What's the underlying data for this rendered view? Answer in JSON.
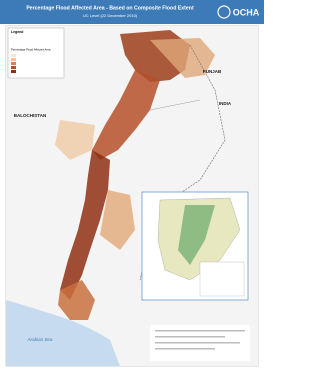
{
  "header": {
    "title": "Percentage Flood Affected Area - Based on Composite Flood Extent",
    "subtitle": "UC Level (22 December 2010)",
    "logo": "OCHA"
  },
  "legend": {
    "title": "Legend",
    "heading": "Percentage Flood Affected Area"
  },
  "labels": {
    "punjab": "PUNJAB",
    "balochistan": "BALOCHISTAN",
    "india": "INDIA",
    "sea": "Arabian Sea"
  }
}
